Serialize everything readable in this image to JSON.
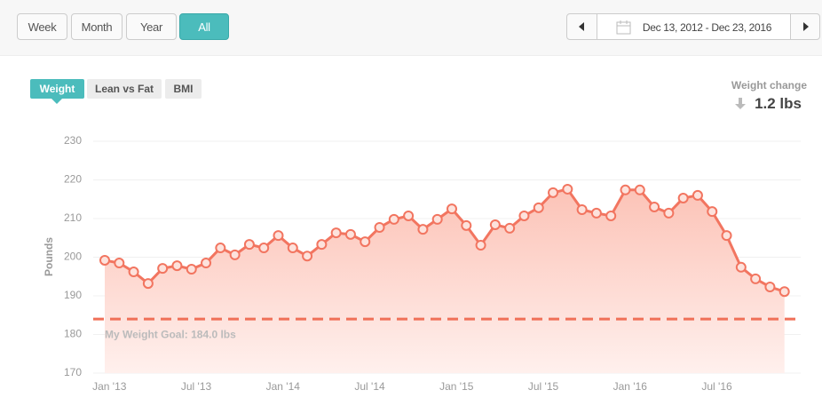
{
  "toolbar": {
    "ranges": [
      "Week",
      "Month",
      "Year",
      "All"
    ],
    "active_index": 3,
    "date_range": "Dec 13, 2012 - Dec 23, 2016"
  },
  "tabs": {
    "items": [
      "Weight",
      "Lean vs Fat",
      "BMI"
    ],
    "active_index": 0
  },
  "weight_change": {
    "label": "Weight change",
    "value": "1.2 lbs"
  },
  "chart_data": {
    "type": "line",
    "y_label": "Pounds",
    "color": "#f27560",
    "grid": true,
    "x": [
      "2012-12",
      "2013-01",
      "2013-02",
      "2013-03",
      "2013-04",
      "2013-05",
      "2013-06",
      "2013-07",
      "2013-08",
      "2013-09",
      "2013-10",
      "2013-11",
      "2013-12",
      "2014-01",
      "2014-02",
      "2014-03",
      "2014-04",
      "2014-05",
      "2014-06",
      "2014-07",
      "2014-08",
      "2014-09",
      "2014-10",
      "2014-11",
      "2014-12",
      "2015-01",
      "2015-02",
      "2015-03",
      "2015-04",
      "2015-05",
      "2015-06",
      "2015-07",
      "2015-08",
      "2015-09",
      "2015-10",
      "2015-11",
      "2015-12",
      "2016-01",
      "2016-02",
      "2016-03",
      "2016-04",
      "2016-05",
      "2016-06",
      "2016-07",
      "2016-08",
      "2016-09",
      "2016-10",
      "2016-11"
    ],
    "series": [
      {
        "name": "Weight",
        "color": "#f27560",
        "values": [
          199.2,
          198.5,
          196.2,
          193.2,
          197.1,
          197.8,
          196.9,
          198.5,
          202.4,
          200.6,
          203.3,
          202.4,
          205.6,
          202.4,
          200.3,
          203.3,
          206.3,
          205.9,
          204.0,
          207.7,
          209.8,
          210.7,
          207.2,
          209.8,
          212.5,
          208.2,
          203.1,
          208.4,
          207.5,
          210.7,
          212.8,
          216.7,
          217.6,
          212.3,
          211.4,
          210.7,
          217.4,
          217.4,
          213.0,
          211.4,
          215.3,
          216.0,
          211.8,
          205.6,
          197.4,
          194.4,
          192.3,
          191.1
        ]
      }
    ],
    "goal": {
      "value": 184,
      "label": "My Weight Goal: 184.0 lbs",
      "color": "#f07058"
    },
    "xlim": [
      "2012-12",
      "2016-12"
    ],
    "xticks": [
      {
        "value": "2013-01",
        "label": "Jan '13"
      },
      {
        "value": "2013-07",
        "label": "Jul '13"
      },
      {
        "value": "2014-01",
        "label": "Jan '14"
      },
      {
        "value": "2014-07",
        "label": "Jul '14"
      },
      {
        "value": "2015-01",
        "label": "Jan '15"
      },
      {
        "value": "2015-07",
        "label": "Jul '15"
      },
      {
        "value": "2016-01",
        "label": "Jan '16"
      },
      {
        "value": "2016-07",
        "label": "Jul '16"
      }
    ],
    "ylim": [
      170,
      230
    ],
    "yticks": [
      170,
      180,
      190,
      200,
      210,
      220,
      230
    ]
  }
}
